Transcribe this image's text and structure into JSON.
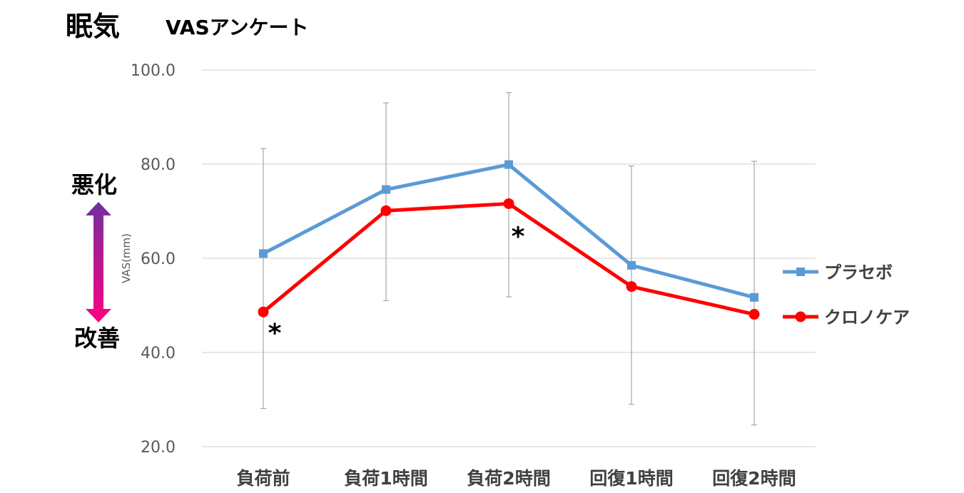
{
  "title": "眠気",
  "subtitle": "VASアンケート",
  "direction": {
    "worse": "悪化",
    "better": "改善"
  },
  "colors": {
    "placebo": "#5B9BD5",
    "chronocare": "#FF0000",
    "grid": "#D9D9D9",
    "error_bar": "#A6A6A6",
    "arrow_top": "#7030A0",
    "arrow_bottom": "#FF0080"
  },
  "chart_data": {
    "type": "line",
    "title": "眠気",
    "subtitle": "VASアンケート",
    "ylabel": "VAS(mm)",
    "xlabel": "",
    "ylim": [
      20,
      100
    ],
    "yticks": [
      20,
      40,
      60,
      80,
      100
    ],
    "ytick_labels": [
      "20.0",
      "40.0",
      "60.0",
      "80.0",
      "100.0"
    ],
    "grid": true,
    "legend_position": "right",
    "categories": [
      "負荷前",
      "負荷1時間",
      "負荷2時間",
      "回復1時間",
      "回復2時間"
    ],
    "series": [
      {
        "name": "プラセボ",
        "marker": "square",
        "color": "#5B9BD5",
        "values": [
          61.0,
          74.6,
          79.9,
          58.5,
          51.7
        ],
        "error_upper": [
          83.3,
          93.0,
          95.2,
          79.6,
          80.6
        ],
        "error_lower": [
          28.1,
          51.0,
          51.8,
          29.0,
          24.6
        ]
      },
      {
        "name": "クロノケア",
        "marker": "circle",
        "color": "#FF0000",
        "values": [
          48.6,
          70.1,
          71.6,
          54.0,
          48.1
        ]
      }
    ],
    "annotations": [
      {
        "text": "*",
        "category_index": 0
      },
      {
        "text": "*",
        "category_index": 2
      }
    ]
  }
}
